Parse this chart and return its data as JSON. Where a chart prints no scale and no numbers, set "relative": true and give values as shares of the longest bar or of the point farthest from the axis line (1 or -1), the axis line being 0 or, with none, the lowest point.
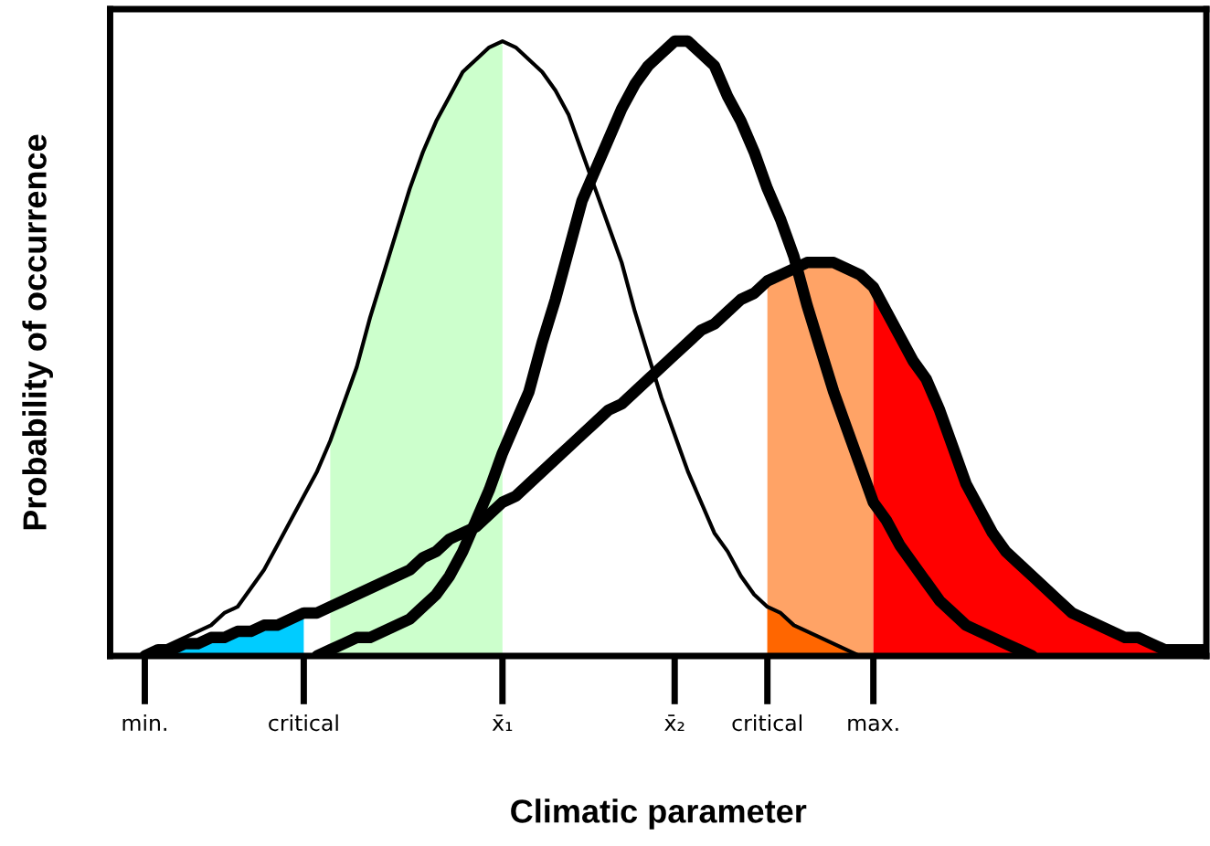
{
  "chart_data": {
    "type": "line",
    "relative": true,
    "xlabel": "Climatic parameter",
    "ylabel": "Probability of occurrence",
    "legend": false,
    "grid": false,
    "categories": [
      null,
      null,
      "min.",
      null,
      null,
      null,
      null,
      null,
      null,
      null,
      null,
      null,
      null,
      null,
      "critical",
      null,
      null,
      null,
      null,
      null,
      null,
      null,
      null,
      null,
      null,
      null,
      null,
      null,
      null,
      "x̄₁",
      null,
      null,
      null,
      null,
      null,
      null,
      null,
      null,
      null,
      null,
      null,
      null,
      "x̄₂",
      null,
      null,
      null,
      null,
      null,
      null,
      "critical",
      null,
      null,
      null,
      null,
      null,
      null,
      null,
      "max.",
      null,
      null,
      null,
      null,
      null,
      null,
      null,
      null,
      null,
      null,
      null,
      null,
      null,
      null,
      null,
      null,
      null,
      null,
      null,
      null,
      null,
      null,
      null,
      null,
      null
    ],
    "series": [
      {
        "type": "area",
        "color": "#ccffcc",
        "values": [
          null,
          null,
          null,
          null,
          null,
          null,
          null,
          null,
          null,
          null,
          null,
          null,
          null,
          null,
          null,
          null,
          0.35,
          0.41,
          0.47,
          0.55,
          0.62,
          0.69,
          0.76,
          0.82,
          0.87,
          0.91,
          0.95,
          0.97,
          0.99,
          1.0,
          null,
          null,
          null,
          null,
          null,
          null,
          null,
          null,
          null,
          null,
          null,
          null,
          null,
          null,
          null,
          null,
          null,
          null,
          null,
          null,
          null,
          null,
          null,
          null,
          null,
          null,
          null,
          null,
          null,
          null,
          null,
          null,
          null,
          null,
          null,
          null,
          null,
          null,
          null,
          null,
          null,
          null,
          null,
          null,
          null,
          null,
          null,
          null,
          null,
          null,
          null,
          null,
          null
        ]
      },
      {
        "type": "area",
        "color": "#00ccff",
        "values": [
          null,
          null,
          0.0,
          0.01,
          0.01,
          0.02,
          0.02,
          0.03,
          0.03,
          0.04,
          0.04,
          0.05,
          0.05,
          0.06,
          0.07,
          null,
          null,
          null,
          null,
          null,
          null,
          null,
          null,
          null,
          null,
          null,
          null,
          null,
          null,
          null,
          null,
          null,
          null,
          null,
          null,
          null,
          null,
          null,
          null,
          null,
          null,
          null,
          null,
          null,
          null,
          null,
          null,
          null,
          null,
          null,
          null,
          null,
          null,
          null,
          null,
          null,
          null,
          null,
          null,
          null,
          null,
          null,
          null,
          null,
          null,
          null,
          null,
          null,
          null,
          null,
          null,
          null,
          null,
          null,
          null,
          null,
          null,
          null,
          null,
          null,
          null,
          null,
          null
        ]
      },
      {
        "type": "area",
        "color": "#ffa366",
        "values": [
          null,
          null,
          null,
          null,
          null,
          null,
          null,
          null,
          null,
          null,
          null,
          null,
          null,
          null,
          null,
          null,
          null,
          null,
          null,
          null,
          null,
          null,
          null,
          null,
          null,
          null,
          null,
          null,
          null,
          null,
          null,
          null,
          null,
          null,
          null,
          null,
          null,
          null,
          null,
          null,
          null,
          null,
          null,
          null,
          null,
          null,
          null,
          null,
          null,
          0.61,
          0.62,
          0.63,
          0.64,
          0.64,
          0.64,
          0.63,
          0.62,
          0.6,
          null,
          null,
          null,
          null,
          null,
          null,
          null,
          null,
          null,
          null,
          null,
          null,
          null,
          null,
          null,
          null,
          null,
          null,
          null,
          null,
          null,
          null,
          null,
          null,
          null
        ]
      },
      {
        "type": "area",
        "color": "#ff6600",
        "values": [
          null,
          null,
          null,
          null,
          null,
          null,
          null,
          null,
          null,
          null,
          null,
          null,
          null,
          null,
          null,
          null,
          null,
          null,
          null,
          null,
          null,
          null,
          null,
          null,
          null,
          null,
          null,
          null,
          null,
          null,
          null,
          null,
          null,
          null,
          null,
          null,
          null,
          null,
          null,
          null,
          null,
          null,
          null,
          null,
          null,
          null,
          null,
          null,
          null,
          0.08,
          0.07,
          0.05,
          0.04,
          0.03,
          0.02,
          0.01,
          0.0,
          null,
          null,
          null,
          null,
          null,
          null,
          null,
          null,
          null,
          null,
          null,
          null,
          null,
          null,
          null,
          null,
          null,
          null,
          null,
          null,
          null,
          null,
          null,
          null,
          null,
          null
        ]
      },
      {
        "type": "area",
        "color": "#ff0000",
        "values": [
          null,
          null,
          null,
          null,
          null,
          null,
          null,
          null,
          null,
          null,
          null,
          null,
          null,
          null,
          null,
          null,
          null,
          null,
          null,
          null,
          null,
          null,
          null,
          null,
          null,
          null,
          null,
          null,
          null,
          null,
          null,
          null,
          null,
          null,
          null,
          null,
          null,
          null,
          null,
          null,
          null,
          null,
          null,
          null,
          null,
          null,
          null,
          null,
          null,
          null,
          null,
          null,
          null,
          null,
          null,
          null,
          null,
          0.6,
          0.56,
          0.52,
          0.48,
          0.45,
          0.4,
          0.34,
          0.28,
          0.24,
          0.2,
          0.17,
          0.15,
          0.13,
          0.11,
          0.09,
          0.07,
          0.06,
          0.05,
          0.04,
          0.03,
          0.03,
          0.02,
          0.01,
          0.01,
          0.01,
          0.01
        ]
      },
      {
        "color": "#000000",
        "values": [
          null,
          null,
          0.0,
          0.01,
          0.02,
          0.03,
          0.04,
          0.05,
          0.07,
          0.08,
          0.11,
          0.14,
          0.18,
          0.22,
          0.26,
          0.3,
          0.35,
          0.41,
          0.47,
          0.55,
          0.62,
          0.69,
          0.76,
          0.82,
          0.87,
          0.91,
          0.95,
          0.97,
          0.99,
          1.0,
          0.99,
          0.97,
          0.95,
          0.92,
          0.88,
          0.82,
          0.76,
          0.7,
          0.64,
          0.56,
          0.49,
          0.42,
          0.36,
          0.3,
          0.25,
          0.2,
          0.17,
          0.13,
          0.1,
          0.08,
          0.07,
          0.05,
          0.04,
          0.03,
          0.02,
          0.01,
          0.0,
          null,
          null,
          null,
          null,
          null,
          null,
          null,
          null,
          null,
          null,
          null,
          null,
          null,
          null,
          null,
          null,
          null,
          null,
          null,
          null,
          null,
          null,
          null,
          null,
          null,
          null
        ]
      },
      {
        "color": "#000000",
        "values": [
          null,
          null,
          null,
          null,
          null,
          null,
          null,
          null,
          null,
          null,
          null,
          null,
          null,
          null,
          null,
          0.0,
          0.01,
          0.02,
          0.03,
          0.03,
          0.04,
          0.05,
          0.06,
          0.08,
          0.1,
          0.13,
          0.17,
          0.22,
          0.27,
          0.33,
          0.38,
          0.43,
          0.51,
          0.58,
          0.66,
          0.74,
          0.79,
          0.84,
          0.89,
          0.93,
          0.96,
          0.98,
          1.0,
          1.0,
          0.98,
          0.96,
          0.91,
          0.87,
          0.82,
          0.76,
          0.71,
          0.65,
          0.57,
          0.5,
          0.43,
          0.37,
          0.31,
          0.25,
          0.22,
          0.18,
          0.15,
          0.12,
          0.09,
          0.07,
          0.05,
          0.04,
          0.03,
          0.02,
          0.01,
          0.0,
          null,
          null,
          null,
          null,
          null,
          null,
          null,
          null,
          null,
          null,
          null,
          null,
          null
        ]
      },
      {
        "color": "#000000",
        "values": [
          null,
          null,
          0.0,
          0.01,
          0.01,
          0.02,
          0.02,
          0.03,
          0.03,
          0.04,
          0.04,
          0.05,
          0.05,
          0.06,
          0.07,
          0.07,
          0.08,
          0.09,
          0.1,
          0.11,
          0.12,
          0.13,
          0.14,
          0.16,
          0.17,
          0.19,
          0.2,
          0.21,
          0.23,
          0.25,
          0.26,
          0.28,
          0.3,
          0.32,
          0.34,
          0.36,
          0.38,
          0.4,
          0.41,
          0.43,
          0.45,
          0.47,
          0.49,
          0.51,
          0.53,
          0.54,
          0.56,
          0.58,
          0.59,
          0.61,
          0.62,
          0.63,
          0.64,
          0.64,
          0.64,
          0.63,
          0.62,
          0.6,
          0.56,
          0.52,
          0.48,
          0.45,
          0.4,
          0.34,
          0.28,
          0.24,
          0.2,
          0.17,
          0.15,
          0.13,
          0.11,
          0.09,
          0.07,
          0.06,
          0.05,
          0.04,
          0.03,
          0.03,
          0.02,
          0.01,
          0.01,
          0.01,
          0.01
        ]
      }
    ]
  }
}
